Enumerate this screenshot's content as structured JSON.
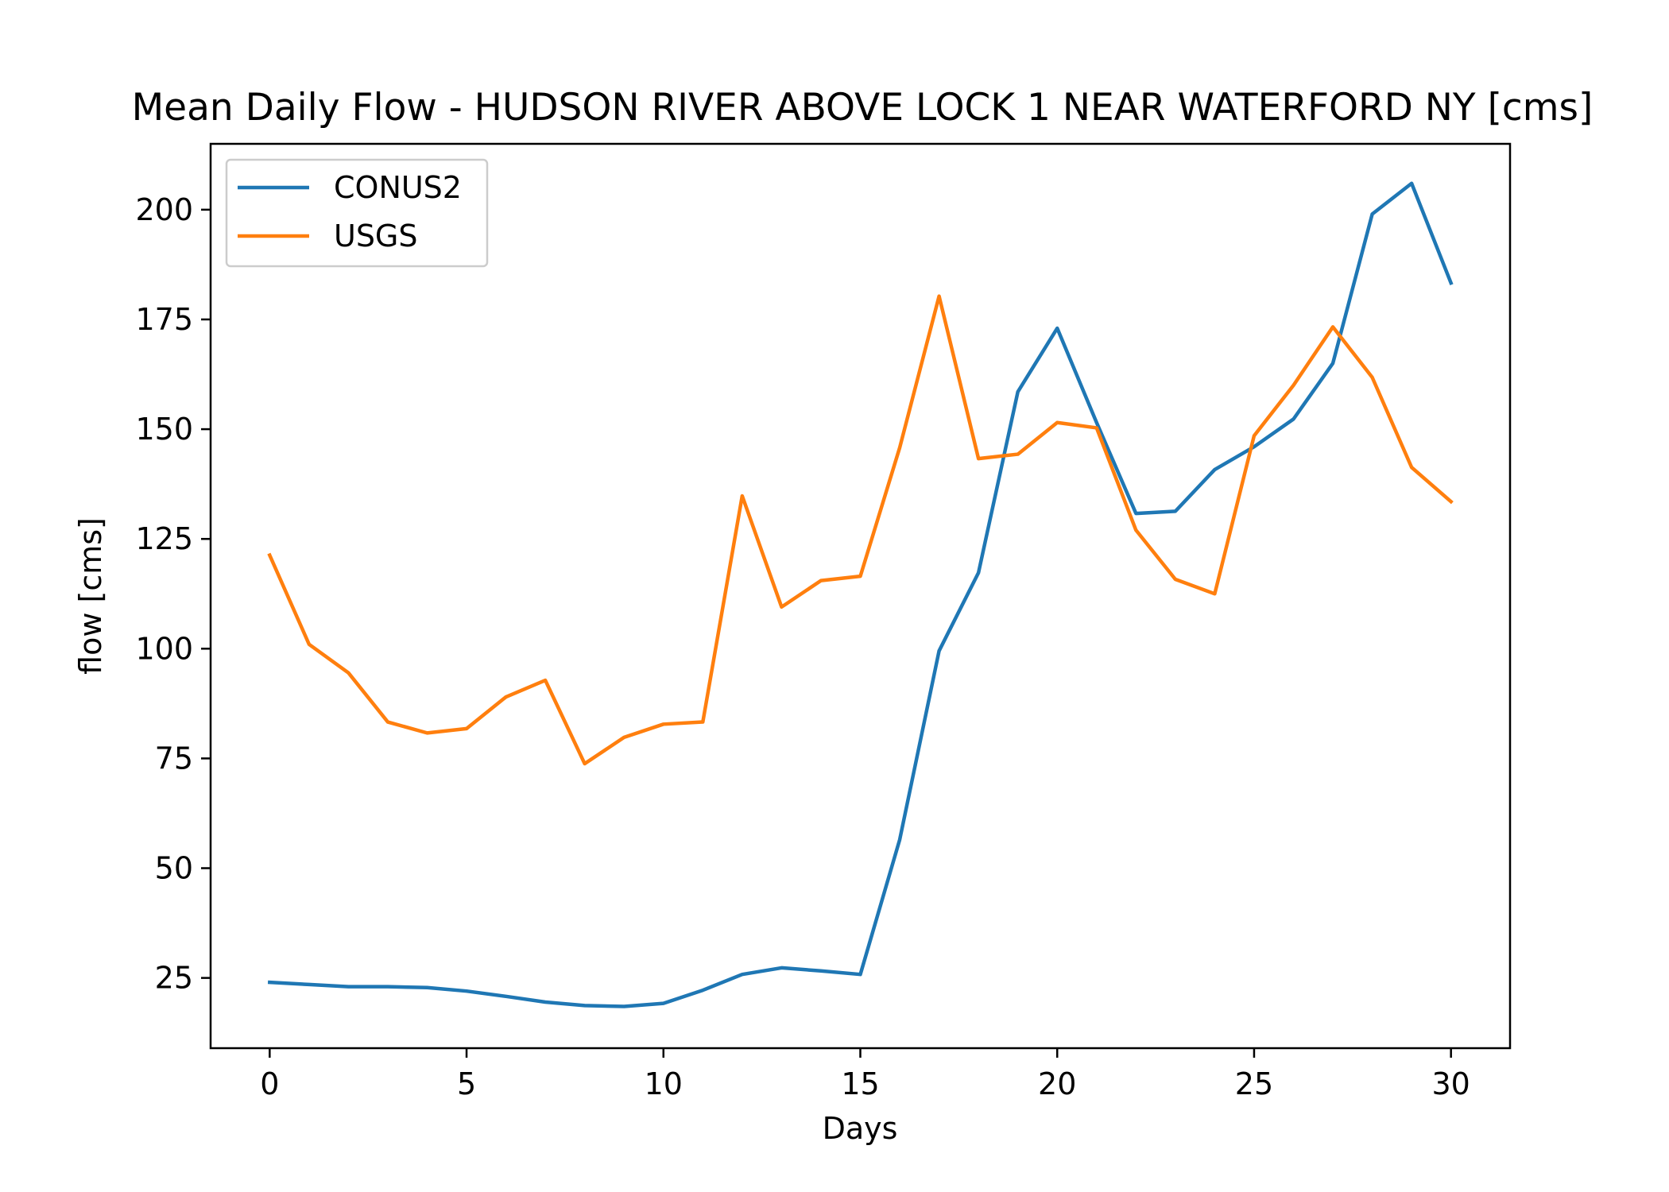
{
  "chart_data": {
    "type": "line",
    "title": "Mean Daily Flow - HUDSON RIVER ABOVE LOCK 1 NEAR WATERFORD NY [cms]",
    "xlabel": "Days",
    "ylabel": "flow [cms]",
    "xlim": [
      -1.5,
      31.5
    ],
    "ylim": [
      9,
      215
    ],
    "xticks": [
      0,
      5,
      10,
      15,
      20,
      25,
      30
    ],
    "yticks": [
      25,
      50,
      75,
      100,
      125,
      150,
      175,
      200
    ],
    "x": [
      0,
      1,
      2,
      3,
      4,
      5,
      6,
      7,
      8,
      9,
      10,
      11,
      12,
      13,
      14,
      15,
      16,
      17,
      18,
      19,
      20,
      21,
      22,
      23,
      24,
      25,
      26,
      27,
      28,
      29,
      30
    ],
    "series": [
      {
        "name": "CONUS2",
        "color": "#1f77b4",
        "values": [
          24,
          23.5,
          23,
          23,
          22.8,
          22,
          20.8,
          19.5,
          18.7,
          18.5,
          19.2,
          22.2,
          25.8,
          27.3,
          26.6,
          25.8,
          56.5,
          99.5,
          117.3,
          158.5,
          173,
          151.5,
          130.8,
          131.3,
          140.8,
          146,
          152.3,
          165,
          199,
          206,
          183.3
        ]
      },
      {
        "name": "USGS",
        "color": "#ff7f0e",
        "values": [
          121.3,
          101,
          94.5,
          83.3,
          80.8,
          81.8,
          89,
          92.8,
          73.8,
          79.8,
          82.8,
          83.3,
          134.8,
          109.5,
          115.5,
          116.5,
          145.8,
          180.3,
          143.3,
          144.3,
          151.5,
          150.3,
          127,
          115.8,
          112.5,
          148.5,
          160,
          173.3,
          161.8,
          141.3,
          133.5
        ]
      }
    ],
    "legend_position": "upper-left",
    "grid": false
  }
}
